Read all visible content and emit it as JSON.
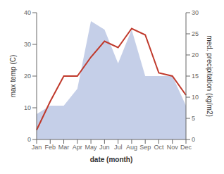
{
  "chart_data": {
    "type": "line",
    "xlabel": "date (month)",
    "ylabel": "max temp (C)",
    "y2label": "med. precipitation (kg/m2)",
    "categories": [
      "Jan",
      "Feb",
      "Mar",
      "Apr",
      "May",
      "Jun",
      "Jul",
      "Aug",
      "Sep",
      "Oct",
      "Nov",
      "Dec"
    ],
    "series": [
      {
        "type": "area",
        "color": "#c5cfe8",
        "axis": "y2",
        "values": [
          6,
          8,
          8,
          12,
          28,
          26,
          18,
          26,
          15,
          15,
          15,
          8
        ]
      },
      {
        "type": "line",
        "color": "#c0392b",
        "values": [
          3,
          12,
          20,
          20,
          26,
          31,
          29,
          35,
          33,
          21,
          20,
          14
        ]
      }
    ],
    "ylim": [
      0,
      40
    ],
    "yticks": [
      0,
      10,
      20,
      30,
      40
    ],
    "y2lim": [
      0,
      30
    ],
    "y2ticks": [
      0,
      5,
      10,
      15,
      20,
      25,
      30
    ]
  }
}
